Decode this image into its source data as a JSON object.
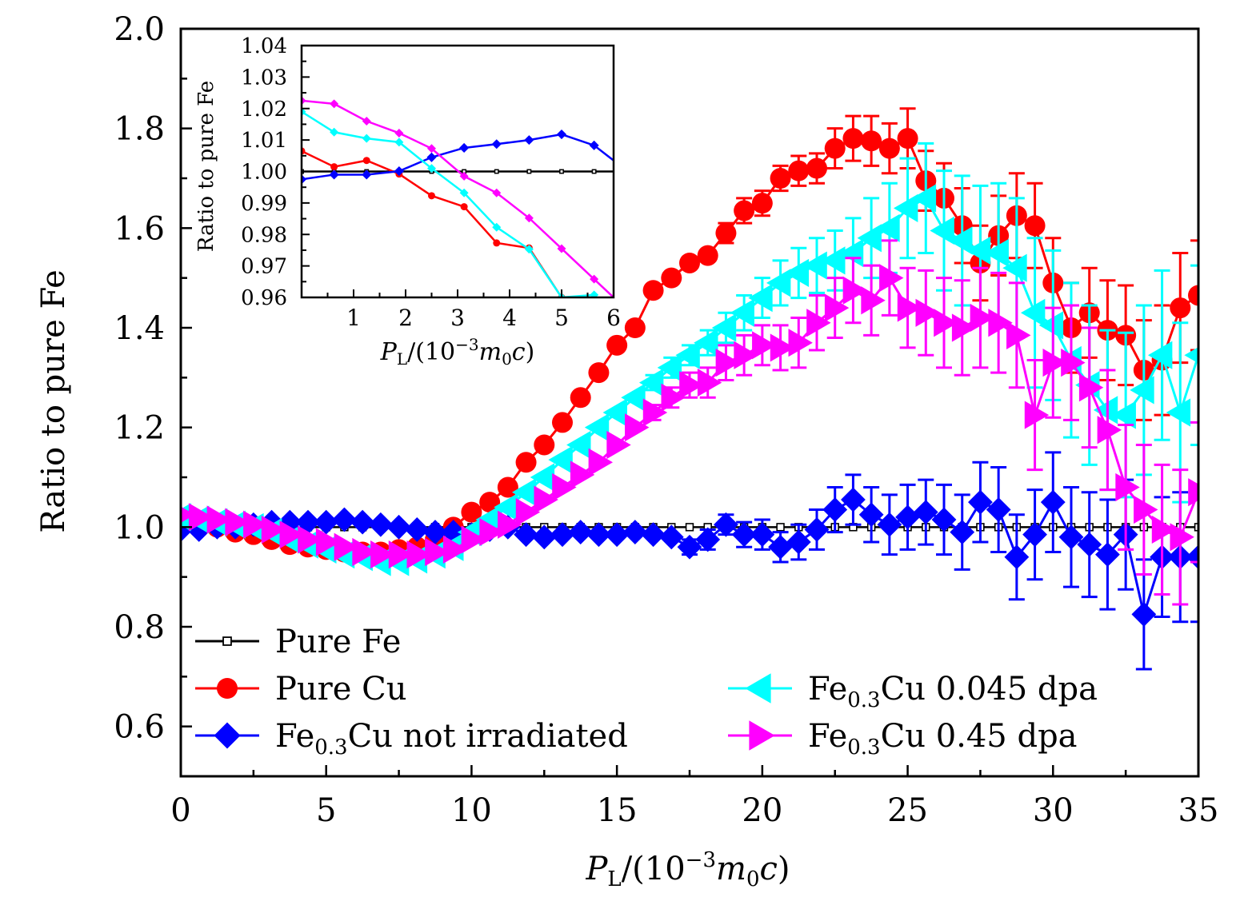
{
  "chart_data": [
    {
      "id": "main",
      "type": "scatter",
      "title": "",
      "xlabel": "P_L/(10^-3 m0 c)",
      "xlabel_parts": {
        "P": "P",
        "sub_L": "L",
        "rest": "/(10",
        "sup": "−3",
        "m": "m",
        "sub_0": "0",
        "c": "c",
        "close": ")"
      },
      "ylabel": "Ratio to pure Fe",
      "xlim": [
        0,
        35
      ],
      "ylim": [
        0.5,
        2.0
      ],
      "xticks": [
        0,
        5,
        10,
        15,
        20,
        25,
        30,
        35
      ],
      "xtick_labels": [
        "0",
        "5",
        "10",
        "15",
        "20",
        "25",
        "30",
        "35"
      ],
      "yticks": [
        0.6,
        0.8,
        1.0,
        1.2,
        1.4,
        1.6,
        1.8,
        2.0
      ],
      "ytick_labels": [
        "0.6",
        "0.8",
        "1.0",
        "1.2",
        "1.4",
        "1.6",
        "1.8",
        "2.0"
      ],
      "grid": false,
      "legend_position": "bottom",
      "x": [
        0.0,
        0.625,
        1.25,
        1.875,
        2.5,
        3.125,
        3.75,
        4.375,
        5.0,
        5.625,
        6.25,
        6.875,
        7.5,
        8.125,
        8.75,
        9.375,
        10.0,
        10.625,
        11.25,
        11.875,
        12.5,
        13.125,
        13.75,
        14.375,
        15.0,
        15.625,
        16.25,
        16.875,
        17.5,
        18.125,
        18.75,
        19.375,
        20.0,
        20.625,
        21.25,
        21.875,
        22.5,
        23.125,
        23.75,
        24.375,
        25.0,
        25.625,
        26.25,
        26.875,
        27.5,
        28.125,
        28.75,
        29.375,
        30.0,
        30.625,
        31.25,
        31.875,
        32.5,
        33.125,
        33.75,
        34.375,
        35.0
      ],
      "series": [
        {
          "name": "Pure Fe",
          "label_main": "Pure Fe",
          "label_sub": "",
          "label_rest": "",
          "color": "#000000",
          "marker": "open-square",
          "values": [
            1.0,
            1.0,
            1.0,
            1.0,
            1.0,
            1.0,
            1.0,
            1.0,
            1.0,
            1.0,
            1.0,
            1.0,
            1.0,
            1.0,
            1.0,
            1.0,
            1.0,
            1.0,
            1.0,
            1.0,
            1.0,
            1.0,
            1.0,
            1.0,
            1.0,
            1.0,
            1.0,
            1.0,
            1.0,
            1.0,
            1.0,
            1.0,
            1.0,
            1.0,
            1.0,
            1.0,
            1.0,
            1.0,
            1.0,
            1.0,
            1.0,
            1.0,
            1.0,
            1.0,
            1.0,
            1.0,
            1.0,
            1.0,
            1.0,
            1.0,
            1.0,
            1.0,
            1.0,
            1.0,
            1.0,
            1.0,
            1.0
          ],
          "errors": []
        },
        {
          "name": "Pure Cu",
          "label_main": "Pure Cu",
          "label_sub": "",
          "label_rest": "",
          "color": "#ff0000",
          "marker": "circle",
          "values": [
            1.01,
            1.0,
            1.0,
            0.99,
            0.985,
            0.975,
            0.965,
            0.96,
            0.955,
            0.95,
            0.95,
            0.95,
            0.955,
            0.96,
            0.975,
            1.0,
            1.03,
            1.05,
            1.08,
            1.13,
            1.165,
            1.21,
            1.26,
            1.31,
            1.365,
            1.4,
            1.475,
            1.5,
            1.53,
            1.545,
            1.59,
            1.635,
            1.65,
            1.7,
            1.715,
            1.72,
            1.76,
            1.78,
            1.775,
            1.76,
            1.78,
            1.695,
            1.66,
            1.605,
            1.53,
            1.585,
            1.625,
            1.605,
            1.49,
            1.4,
            1.43,
            1.395,
            1.385,
            1.315,
            1.335,
            1.44,
            1.465
          ],
          "errors": [
            0,
            0,
            0,
            0,
            0,
            0,
            0,
            0,
            0,
            0,
            0,
            0,
            0,
            0,
            0,
            0,
            0,
            0,
            0,
            0,
            0,
            0,
            0,
            0,
            0,
            0,
            0,
            0,
            0,
            0,
            0.02,
            0.025,
            0.025,
            0.025,
            0.03,
            0.03,
            0.04,
            0.045,
            0.05,
            0.05,
            0.06,
            0.06,
            0.07,
            0.075,
            0.075,
            0.08,
            0.085,
            0.085,
            0.09,
            0.09,
            0.09,
            0.1,
            0.1,
            0.1,
            0.11,
            0.11,
            0.11
          ]
        },
        {
          "name": "Fe0.3Cu not irradiated",
          "label_main": "Fe",
          "label_sub": "0.3",
          "label_rest": "Cu not irradiated",
          "color": "#0000ff",
          "marker": "diamond",
          "values": [
            0.995,
            0.995,
            1.0,
            1.0,
            1.005,
            1.01,
            1.01,
            1.01,
            1.01,
            1.015,
            1.01,
            1.005,
            1.0,
            0.995,
            0.99,
            0.99,
            0.985,
            0.995,
            1.0,
            0.985,
            0.98,
            0.985,
            0.99,
            0.985,
            0.985,
            0.99,
            0.985,
            0.98,
            0.96,
            0.975,
            1.005,
            0.985,
            0.985,
            0.96,
            0.97,
            0.995,
            1.035,
            1.055,
            1.025,
            1.005,
            1.02,
            1.03,
            1.015,
            0.99,
            1.05,
            1.035,
            0.94,
            0.985,
            1.05,
            0.98,
            0.965,
            0.945,
            0.985,
            0.825,
            0.94,
            0.94,
            0.94
          ],
          "errors": [
            0,
            0,
            0,
            0,
            0,
            0,
            0,
            0,
            0,
            0,
            0,
            0,
            0,
            0,
            0,
            0,
            0,
            0,
            0,
            0,
            0,
            0,
            0,
            0,
            0,
            0,
            0,
            0,
            0.015,
            0.02,
            0.02,
            0.025,
            0.03,
            0.03,
            0.035,
            0.04,
            0.045,
            0.05,
            0.055,
            0.06,
            0.065,
            0.065,
            0.07,
            0.075,
            0.08,
            0.085,
            0.085,
            0.09,
            0.1,
            0.1,
            0.105,
            0.11,
            0.11,
            0.11,
            0.12,
            0.13,
            0.13
          ]
        },
        {
          "name": "Fe0.3Cu 0.045 dpa",
          "label_main": "Fe",
          "label_sub": "0.3",
          "label_rest": "Cu 0.045 dpa",
          "color": "#00ffff",
          "marker": "triangle-left",
          "values": [
            1.02,
            1.015,
            1.01,
            1.005,
            1.0,
            0.99,
            0.975,
            0.965,
            0.955,
            0.945,
            0.94,
            0.93,
            0.93,
            0.935,
            0.945,
            0.96,
            0.99,
            1.015,
            1.04,
            1.07,
            1.1,
            1.135,
            1.165,
            1.2,
            1.23,
            1.26,
            1.29,
            1.32,
            1.345,
            1.37,
            1.4,
            1.43,
            1.46,
            1.49,
            1.51,
            1.525,
            1.535,
            1.55,
            1.58,
            1.6,
            1.64,
            1.66,
            1.595,
            1.575,
            1.555,
            1.55,
            1.52,
            1.43,
            1.405,
            1.335,
            1.285,
            1.235,
            1.225,
            1.275,
            1.345,
            1.23,
            1.345
          ],
          "errors": [
            0,
            0,
            0,
            0,
            0,
            0,
            0,
            0,
            0,
            0,
            0,
            0,
            0,
            0,
            0,
            0,
            0,
            0,
            0,
            0,
            0,
            0,
            0,
            0,
            0,
            0,
            0.015,
            0.02,
            0.02,
            0.025,
            0.03,
            0.035,
            0.04,
            0.045,
            0.05,
            0.055,
            0.06,
            0.07,
            0.08,
            0.09,
            0.1,
            0.11,
            0.12,
            0.13,
            0.13,
            0.14,
            0.14,
            0.15,
            0.15,
            0.155,
            0.16,
            0.16,
            0.165,
            0.17,
            0.17,
            0.18,
            0.18
          ]
        },
        {
          "name": "Fe0.3Cu 0.45 dpa",
          "label_main": "Fe",
          "label_sub": "0.3",
          "label_rest": "Cu 0.45 dpa",
          "color": "#ff00ff",
          "marker": "triangle-right",
          "values": [
            1.025,
            1.02,
            1.015,
            1.01,
            1.005,
            0.995,
            0.985,
            0.975,
            0.97,
            0.96,
            0.95,
            0.945,
            0.945,
            0.945,
            0.95,
            0.955,
            0.975,
            0.99,
            1.005,
            1.03,
            1.055,
            1.08,
            1.105,
            1.13,
            1.165,
            1.2,
            1.23,
            1.26,
            1.285,
            1.29,
            1.33,
            1.345,
            1.365,
            1.36,
            1.37,
            1.41,
            1.44,
            1.475,
            1.455,
            1.5,
            1.44,
            1.43,
            1.41,
            1.4,
            1.42,
            1.41,
            1.385,
            1.225,
            1.33,
            1.33,
            1.28,
            1.195,
            1.08,
            1.035,
            0.995,
            0.98,
            1.07
          ],
          "errors": [
            0,
            0,
            0,
            0,
            0,
            0,
            0,
            0,
            0,
            0,
            0,
            0,
            0,
            0,
            0,
            0,
            0,
            0,
            0,
            0,
            0,
            0,
            0,
            0,
            0,
            0,
            0.015,
            0.02,
            0.025,
            0.03,
            0.035,
            0.04,
            0.04,
            0.045,
            0.05,
            0.055,
            0.06,
            0.065,
            0.07,
            0.075,
            0.08,
            0.085,
            0.09,
            0.095,
            0.1,
            0.1,
            0.105,
            0.11,
            0.11,
            0.115,
            0.12,
            0.12,
            0.125,
            0.13,
            0.13,
            0.135,
            0.14
          ]
        }
      ]
    },
    {
      "id": "inset",
      "type": "line",
      "title": "",
      "xlabel": "P_L/(10^-3 m0 c)",
      "ylabel": "Ratio to pure Fe",
      "xlim": [
        0,
        6
      ],
      "ylim": [
        0.96,
        1.04
      ],
      "xticks": [
        1,
        2,
        3,
        4,
        5,
        6
      ],
      "xtick_labels": [
        "1",
        "2",
        "3",
        "4",
        "5",
        "6"
      ],
      "yticks": [
        0.96,
        0.97,
        0.98,
        0.99,
        1.0,
        1.01,
        1.02,
        1.03,
        1.04
      ],
      "ytick_labels": [
        "0.96",
        "0.97",
        "0.98",
        "0.99",
        "1.00",
        "1.01",
        "1.02",
        "1.03",
        "1.04"
      ],
      "grid": false,
      "x": [
        0.0,
        0.625,
        1.25,
        1.875,
        2.5,
        3.125,
        3.75,
        4.375,
        5.0,
        5.625,
        6.0
      ],
      "series": [
        {
          "name": "Pure Fe",
          "color": "#000000",
          "marker": "open-square",
          "values": [
            1.0,
            1.0,
            1.0,
            1.0,
            1.0,
            1.0,
            1.0,
            1.0,
            1.0,
            1.0,
            1.0
          ]
        },
        {
          "name": "Pure Cu",
          "color": "#ff0000",
          "marker": "circle",
          "values": [
            1.0065,
            1.0015,
            1.0035,
            0.9992,
            0.9923,
            0.9888,
            0.9773,
            0.9757,
            0.96,
            null,
            null
          ]
        },
        {
          "name": "Fe0.3Cu not irradiated",
          "color": "#0000ff",
          "marker": "diamond",
          "values": [
            0.9975,
            0.999,
            0.999,
            1.0001,
            1.0045,
            1.0075,
            1.0087,
            1.01,
            1.0118,
            1.0083,
            1.0035
          ]
        },
        {
          "name": "Fe0.3Cu 0.045 dpa",
          "color": "#00ffff",
          "marker": "triangle-left",
          "values": [
            1.019,
            1.0125,
            1.0105,
            1.0093,
            1.001,
            0.9932,
            0.9823,
            0.9753,
            0.96,
            0.9608,
            null
          ]
        },
        {
          "name": "Fe0.3Cu 0.45 dpa",
          "color": "#ff00ff",
          "marker": "triangle-right",
          "values": [
            1.0225,
            1.0215,
            1.016,
            1.0122,
            1.0073,
            0.9985,
            0.9932,
            0.9852,
            0.9755,
            0.9658,
            0.96
          ]
        }
      ]
    }
  ]
}
